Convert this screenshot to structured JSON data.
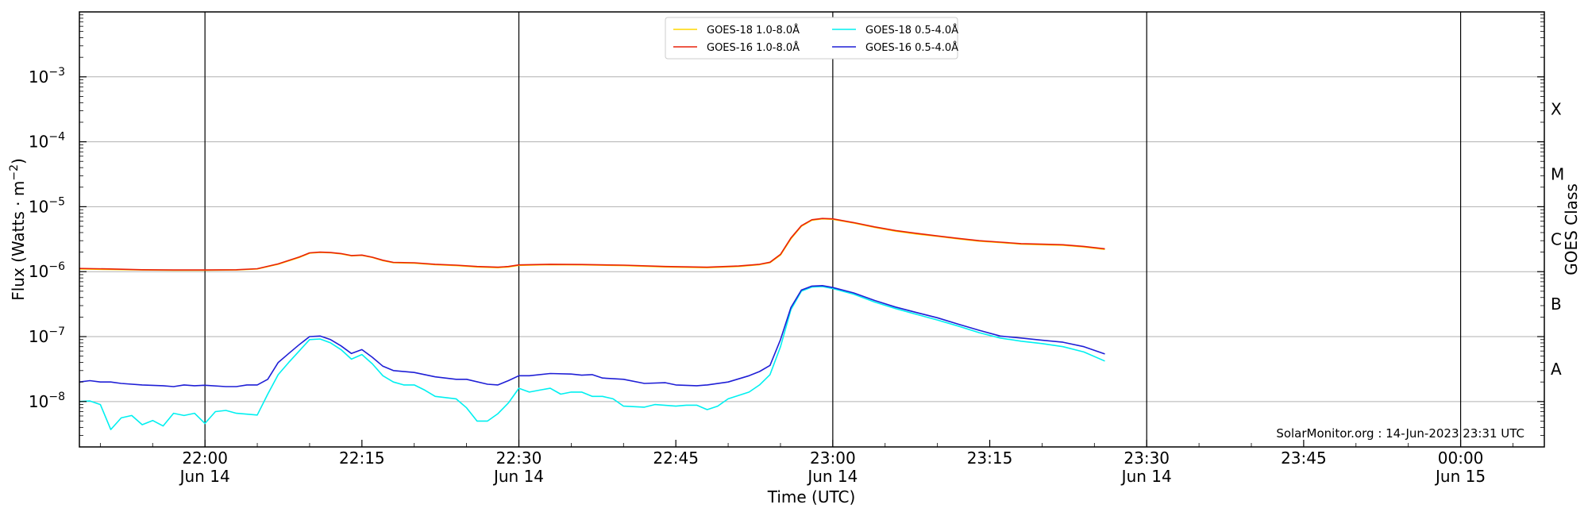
{
  "chart_data": {
    "type": "line",
    "ylabel_main": "Flux (Watts · m",
    "ylabel_sup": "−2",
    "ylabel_tail": ")",
    "xlabel": "Time (UTC)",
    "right_label": "GOES Class",
    "credit": "SolarMonitor.org : 14-Jun-2023 23:31 UTC",
    "y_scale": "log",
    "ylim": [
      "2e-9",
      "1e-2"
    ],
    "xlim": [
      "21:48",
      "00:08"
    ],
    "grid": "horizontal at decades",
    "legend_position": "top-center",
    "vertical_lines": [
      "22:00",
      "22:30",
      "23:00",
      "23:30",
      "00:00"
    ],
    "x_ticks": [
      {
        "t": "22:00",
        "label": "22:00",
        "sub": "Jun 14"
      },
      {
        "t": "22:15",
        "label": "22:15",
        "sub": ""
      },
      {
        "t": "22:30",
        "label": "22:30",
        "sub": "Jun 14"
      },
      {
        "t": "22:45",
        "label": "22:45",
        "sub": ""
      },
      {
        "t": "23:00",
        "label": "23:00",
        "sub": "Jun 14"
      },
      {
        "t": "23:15",
        "label": "23:15",
        "sub": ""
      },
      {
        "t": "23:30",
        "label": "23:30",
        "sub": "Jun 14"
      },
      {
        "t": "23:45",
        "label": "23:45",
        "sub": ""
      },
      {
        "t": "00:00",
        "label": "00:00",
        "sub": "Jun 15"
      }
    ],
    "y_ticks": [
      {
        "exp": -8,
        "base": "10",
        "sup": "−8"
      },
      {
        "exp": -7,
        "base": "10",
        "sup": "−7"
      },
      {
        "exp": -6,
        "base": "10",
        "sup": "−6"
      },
      {
        "exp": -5,
        "base": "10",
        "sup": "−5"
      },
      {
        "exp": -4,
        "base": "10",
        "sup": "−4"
      },
      {
        "exp": -3,
        "base": "10",
        "sup": "−3"
      }
    ],
    "goes_classes": [
      {
        "label": "A",
        "exp": -7.5
      },
      {
        "label": "B",
        "exp": -6.5
      },
      {
        "label": "C",
        "exp": -5.5
      },
      {
        "label": "M",
        "exp": -4.5
      },
      {
        "label": "X",
        "exp": -3.5
      }
    ],
    "legend": [
      {
        "label": "GOES-18 1.0-8.0Å",
        "color": "#ffd700"
      },
      {
        "label": "GOES-16 1.0-8.0Å",
        "color": "#e8210a"
      },
      {
        "label": "GOES-18 0.5-4.0Å",
        "color": "#00f0f0"
      },
      {
        "label": "GOES-16 0.5-4.0Å",
        "color": "#1f1fd6"
      }
    ],
    "series": [
      {
        "name": "GOES-18 1.0-8.0Å",
        "color": "#ffd700",
        "points": [
          [
            "21:48",
            1.1e-06
          ],
          [
            "21:51",
            1.08e-06
          ],
          [
            "21:54",
            1.06e-06
          ],
          [
            "21:57",
            1.05e-06
          ],
          [
            "22:00",
            1.05e-06
          ],
          [
            "22:03",
            1.06e-06
          ],
          [
            "22:05",
            1.1e-06
          ],
          [
            "22:07",
            1.3e-06
          ],
          [
            "22:09",
            1.65e-06
          ],
          [
            "22:10",
            1.92e-06
          ],
          [
            "22:11",
            1.98e-06
          ],
          [
            "22:12",
            1.95e-06
          ],
          [
            "22:13",
            1.88e-06
          ],
          [
            "22:14",
            1.75e-06
          ],
          [
            "22:15",
            1.78e-06
          ],
          [
            "22:16",
            1.65e-06
          ],
          [
            "22:17",
            1.48e-06
          ],
          [
            "22:18",
            1.37e-06
          ],
          [
            "22:20",
            1.35e-06
          ],
          [
            "22:22",
            1.28e-06
          ],
          [
            "22:24",
            1.24e-06
          ],
          [
            "22:26",
            1.18e-06
          ],
          [
            "22:28",
            1.15e-06
          ],
          [
            "22:29",
            1.18e-06
          ],
          [
            "22:30",
            1.25e-06
          ],
          [
            "22:33",
            1.28e-06
          ],
          [
            "22:36",
            1.27e-06
          ],
          [
            "22:40",
            1.24e-06
          ],
          [
            "22:44",
            1.18e-06
          ],
          [
            "22:48",
            1.15e-06
          ],
          [
            "22:51",
            1.2e-06
          ],
          [
            "22:53",
            1.28e-06
          ],
          [
            "22:54",
            1.38e-06
          ],
          [
            "22:55",
            1.8e-06
          ],
          [
            "22:56",
            3.2e-06
          ],
          [
            "22:57",
            5e-06
          ],
          [
            "22:58",
            6.2e-06
          ],
          [
            "22:59",
            6.5e-06
          ],
          [
            "23:00",
            6.4e-06
          ],
          [
            "23:02",
            5.6e-06
          ],
          [
            "23:04",
            4.8e-06
          ],
          [
            "23:06",
            4.2e-06
          ],
          [
            "23:08",
            3.8e-06
          ],
          [
            "23:10",
            3.5e-06
          ],
          [
            "23:12",
            3.2e-06
          ],
          [
            "23:14",
            2.95e-06
          ],
          [
            "23:16",
            2.8e-06
          ],
          [
            "23:18",
            2.65e-06
          ],
          [
            "23:20",
            2.6e-06
          ],
          [
            "23:22",
            2.55e-06
          ],
          [
            "23:24",
            2.4e-06
          ],
          [
            "23:26",
            2.2e-06
          ]
        ]
      },
      {
        "name": "GOES-16 1.0-8.0Å",
        "color": "#e8210a",
        "points": [
          [
            "21:48",
            1.12e-06
          ],
          [
            "21:51",
            1.1e-06
          ],
          [
            "21:54",
            1.07e-06
          ],
          [
            "21:57",
            1.06e-06
          ],
          [
            "22:00",
            1.06e-06
          ],
          [
            "22:03",
            1.07e-06
          ],
          [
            "22:05",
            1.11e-06
          ],
          [
            "22:07",
            1.32e-06
          ],
          [
            "22:09",
            1.68e-06
          ],
          [
            "22:10",
            1.95e-06
          ],
          [
            "22:11",
            2e-06
          ],
          [
            "22:12",
            1.97e-06
          ],
          [
            "22:13",
            1.9e-06
          ],
          [
            "22:14",
            1.77e-06
          ],
          [
            "22:15",
            1.8e-06
          ],
          [
            "22:16",
            1.67e-06
          ],
          [
            "22:17",
            1.5e-06
          ],
          [
            "22:18",
            1.39e-06
          ],
          [
            "22:20",
            1.37e-06
          ],
          [
            "22:22",
            1.3e-06
          ],
          [
            "22:24",
            1.26e-06
          ],
          [
            "22:26",
            1.2e-06
          ],
          [
            "22:28",
            1.17e-06
          ],
          [
            "22:29",
            1.2e-06
          ],
          [
            "22:30",
            1.27e-06
          ],
          [
            "22:33",
            1.3e-06
          ],
          [
            "22:36",
            1.29e-06
          ],
          [
            "22:40",
            1.26e-06
          ],
          [
            "22:44",
            1.2e-06
          ],
          [
            "22:48",
            1.17e-06
          ],
          [
            "22:51",
            1.22e-06
          ],
          [
            "22:53",
            1.3e-06
          ],
          [
            "22:54",
            1.4e-06
          ],
          [
            "22:55",
            1.85e-06
          ],
          [
            "22:56",
            3.3e-06
          ],
          [
            "22:57",
            5.1e-06
          ],
          [
            "22:58",
            6.3e-06
          ],
          [
            "22:59",
            6.6e-06
          ],
          [
            "23:00",
            6.5e-06
          ],
          [
            "23:02",
            5.7e-06
          ],
          [
            "23:04",
            4.9e-06
          ],
          [
            "23:06",
            4.3e-06
          ],
          [
            "23:08",
            3.9e-06
          ],
          [
            "23:10",
            3.55e-06
          ],
          [
            "23:12",
            3.25e-06
          ],
          [
            "23:14",
            3e-06
          ],
          [
            "23:16",
            2.85e-06
          ],
          [
            "23:18",
            2.7e-06
          ],
          [
            "23:20",
            2.65e-06
          ],
          [
            "23:22",
            2.6e-06
          ],
          [
            "23:24",
            2.45e-06
          ],
          [
            "23:26",
            2.25e-06
          ]
        ]
      },
      {
        "name": "GOES-18 0.5-4.0Å",
        "color": "#00f0f0",
        "points": [
          [
            "21:48",
            1e-08
          ],
          [
            "21:49",
            1.02e-08
          ],
          [
            "21:50",
            9e-09
          ],
          [
            "21:51",
            3.7e-09
          ],
          [
            "21:52",
            5.6e-09
          ],
          [
            "21:53",
            6.1e-09
          ],
          [
            "21:54",
            4.4e-09
          ],
          [
            "21:55",
            5.1e-09
          ],
          [
            "21:56",
            4.2e-09
          ],
          [
            "21:57",
            6.6e-09
          ],
          [
            "21:58",
            6.1e-09
          ],
          [
            "21:59",
            6.6e-09
          ],
          [
            "22:00",
            4.6e-09
          ],
          [
            "22:01",
            7e-09
          ],
          [
            "22:02",
            7.3e-09
          ],
          [
            "22:03",
            6.6e-09
          ],
          [
            "22:04",
            6.4e-09
          ],
          [
            "22:05",
            6.2e-09
          ],
          [
            "22:06",
            1.3e-08
          ],
          [
            "22:07",
            2.6e-08
          ],
          [
            "22:08",
            4e-08
          ],
          [
            "22:09",
            6e-08
          ],
          [
            "22:10",
            9e-08
          ],
          [
            "22:11",
            9.2e-08
          ],
          [
            "22:12",
            8e-08
          ],
          [
            "22:13",
            6.3e-08
          ],
          [
            "22:14",
            4.5e-08
          ],
          [
            "22:15",
            5.3e-08
          ],
          [
            "22:16",
            3.8e-08
          ],
          [
            "22:17",
            2.5e-08
          ],
          [
            "22:18",
            2e-08
          ],
          [
            "22:19",
            1.8e-08
          ],
          [
            "22:20",
            1.8e-08
          ],
          [
            "22:21",
            1.5e-08
          ],
          [
            "22:22",
            1.2e-08
          ],
          [
            "22:24",
            1.1e-08
          ],
          [
            "22:25",
            8e-09
          ],
          [
            "22:26",
            5e-09
          ],
          [
            "22:27",
            5e-09
          ],
          [
            "22:28",
            6.5e-09
          ],
          [
            "22:29",
            9.5e-09
          ],
          [
            "22:30",
            1.6e-08
          ],
          [
            "22:31",
            1.4e-08
          ],
          [
            "22:32",
            1.5e-08
          ],
          [
            "22:33",
            1.6e-08
          ],
          [
            "22:34",
            1.3e-08
          ],
          [
            "22:35",
            1.4e-08
          ],
          [
            "22:36",
            1.4e-08
          ],
          [
            "22:37",
            1.2e-08
          ],
          [
            "22:38",
            1.2e-08
          ],
          [
            "22:39",
            1.1e-08
          ],
          [
            "22:40",
            8.5e-09
          ],
          [
            "22:42",
            8.2e-09
          ],
          [
            "22:43",
            9e-09
          ],
          [
            "22:45",
            8.5e-09
          ],
          [
            "22:46",
            8.8e-09
          ],
          [
            "22:47",
            8.8e-09
          ],
          [
            "22:48",
            7.5e-09
          ],
          [
            "22:49",
            8.5e-09
          ],
          [
            "22:50",
            1.1e-08
          ],
          [
            "22:52",
            1.4e-08
          ],
          [
            "22:53",
            1.8e-08
          ],
          [
            "22:54",
            2.6e-08
          ],
          [
            "22:55",
            7e-08
          ],
          [
            "22:56",
            2.6e-07
          ],
          [
            "22:57",
            5e-07
          ],
          [
            "22:58",
            5.8e-07
          ],
          [
            "22:59",
            5.9e-07
          ],
          [
            "23:00",
            5.5e-07
          ],
          [
            "23:02",
            4.5e-07
          ],
          [
            "23:04",
            3.4e-07
          ],
          [
            "23:06",
            2.7e-07
          ],
          [
            "23:08",
            2.2e-07
          ],
          [
            "23:10",
            1.8e-07
          ],
          [
            "23:12",
            1.45e-07
          ],
          [
            "23:14",
            1.15e-07
          ],
          [
            "23:16",
            9.5e-08
          ],
          [
            "23:18",
            8.5e-08
          ],
          [
            "23:20",
            7.8e-08
          ],
          [
            "23:22",
            7e-08
          ],
          [
            "23:24",
            5.8e-08
          ],
          [
            "23:26",
            4.2e-08
          ]
        ]
      },
      {
        "name": "GOES-16 0.5-4.0Å",
        "color": "#1f1fd6",
        "points": [
          [
            "21:48",
            2e-08
          ],
          [
            "21:49",
            2.1e-08
          ],
          [
            "21:50",
            2e-08
          ],
          [
            "21:51",
            2e-08
          ],
          [
            "21:52",
            1.9e-08
          ],
          [
            "21:54",
            1.8e-08
          ],
          [
            "21:56",
            1.75e-08
          ],
          [
            "21:57",
            1.7e-08
          ],
          [
            "21:58",
            1.8e-08
          ],
          [
            "21:59",
            1.75e-08
          ],
          [
            "22:00",
            1.78e-08
          ],
          [
            "22:02",
            1.7e-08
          ],
          [
            "22:03",
            1.7e-08
          ],
          [
            "22:04",
            1.8e-08
          ],
          [
            "22:05",
            1.8e-08
          ],
          [
            "22:06",
            2.2e-08
          ],
          [
            "22:07",
            4e-08
          ],
          [
            "22:08",
            5.5e-08
          ],
          [
            "22:09",
            7.5e-08
          ],
          [
            "22:10",
            1e-07
          ],
          [
            "22:11",
            1.02e-07
          ],
          [
            "22:12",
            9e-08
          ],
          [
            "22:13",
            7.2e-08
          ],
          [
            "22:14",
            5.5e-08
          ],
          [
            "22:15",
            6.3e-08
          ],
          [
            "22:16",
            4.8e-08
          ],
          [
            "22:17",
            3.5e-08
          ],
          [
            "22:18",
            3e-08
          ],
          [
            "22:20",
            2.8e-08
          ],
          [
            "22:22",
            2.4e-08
          ],
          [
            "22:24",
            2.2e-08
          ],
          [
            "22:25",
            2.2e-08
          ],
          [
            "22:27",
            1.85e-08
          ],
          [
            "22:28",
            1.8e-08
          ],
          [
            "22:29",
            2.1e-08
          ],
          [
            "22:30",
            2.5e-08
          ],
          [
            "22:31",
            2.5e-08
          ],
          [
            "22:33",
            2.7e-08
          ],
          [
            "22:35",
            2.65e-08
          ],
          [
            "22:36",
            2.55e-08
          ],
          [
            "22:37",
            2.6e-08
          ],
          [
            "22:38",
            2.3e-08
          ],
          [
            "22:40",
            2.2e-08
          ],
          [
            "22:42",
            1.9e-08
          ],
          [
            "22:44",
            1.95e-08
          ],
          [
            "22:45",
            1.8e-08
          ],
          [
            "22:47",
            1.75e-08
          ],
          [
            "22:48",
            1.8e-08
          ],
          [
            "22:50",
            2e-08
          ],
          [
            "22:52",
            2.5e-08
          ],
          [
            "22:53",
            2.9e-08
          ],
          [
            "22:54",
            3.6e-08
          ],
          [
            "22:55",
            9e-08
          ],
          [
            "22:56",
            2.8e-07
          ],
          [
            "22:57",
            5.2e-07
          ],
          [
            "22:58",
            6e-07
          ],
          [
            "22:59",
            6.1e-07
          ],
          [
            "23:00",
            5.7e-07
          ],
          [
            "23:02",
            4.7e-07
          ],
          [
            "23:04",
            3.6e-07
          ],
          [
            "23:06",
            2.85e-07
          ],
          [
            "23:08",
            2.35e-07
          ],
          [
            "23:10",
            1.95e-07
          ],
          [
            "23:12",
            1.55e-07
          ],
          [
            "23:14",
            1.25e-07
          ],
          [
            "23:16",
            1.02e-07
          ],
          [
            "23:18",
            9.5e-08
          ],
          [
            "23:20",
            8.8e-08
          ],
          [
            "23:22",
            8.2e-08
          ],
          [
            "23:24",
            7e-08
          ],
          [
            "23:26",
            5.4e-08
          ]
        ]
      }
    ]
  }
}
